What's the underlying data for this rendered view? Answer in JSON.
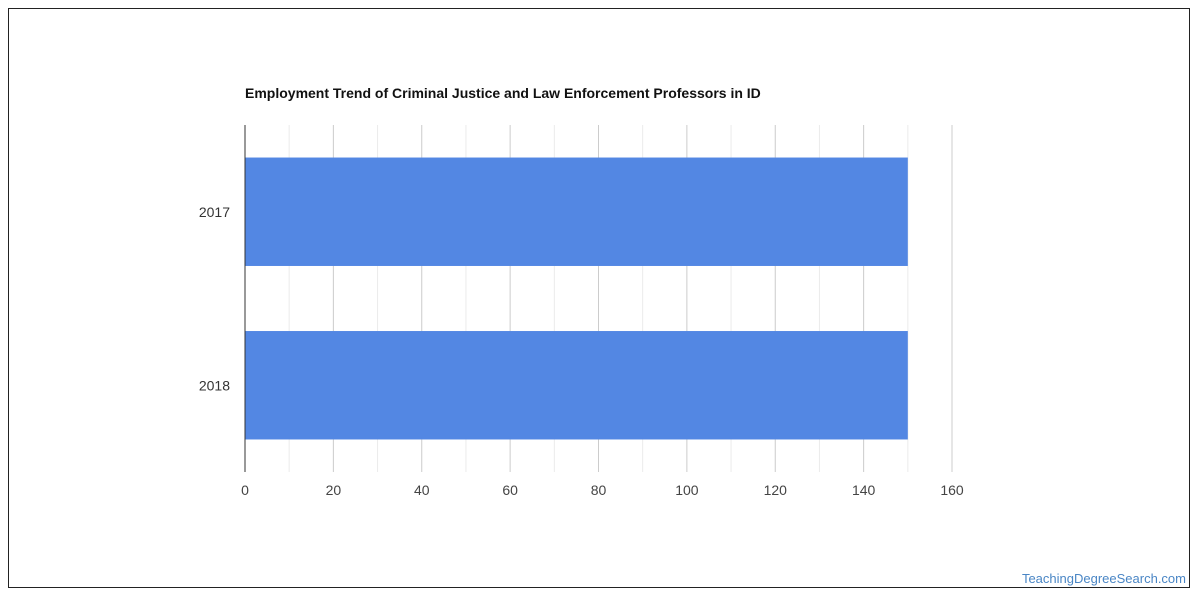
{
  "chart_data": {
    "type": "bar",
    "orientation": "horizontal",
    "title": "Employment Trend of Criminal Justice and Law Enforcement Professors in ID",
    "xlabel": "",
    "ylabel": "",
    "categories": [
      "2017",
      "2018"
    ],
    "values": [
      150,
      150
    ],
    "xlim": [
      0,
      160
    ],
    "x_ticks": [
      0,
      20,
      40,
      60,
      80,
      100,
      120,
      140,
      160
    ],
    "minor_gridlines": true,
    "bar_color": "#5387e3",
    "grid": true,
    "legend": "none"
  },
  "watermark": "TeachingDegreeSearch.com"
}
